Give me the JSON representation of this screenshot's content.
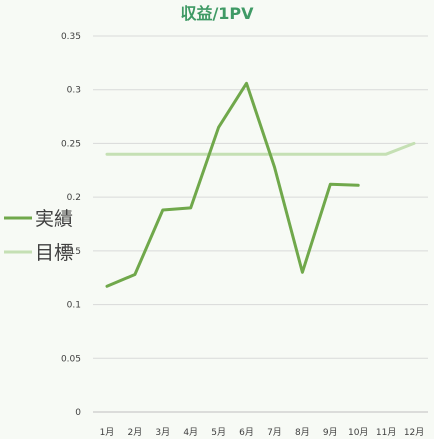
{
  "colors": {
    "background": "#f7faf5",
    "title": "#3f9a65",
    "actual": "#70a84b",
    "target": "#c5e0b4",
    "grid": "#d9d9d9",
    "text": "#404040"
  },
  "chart_data": {
    "type": "line",
    "title": "収益/1PV",
    "xlabel": "",
    "ylabel": "",
    "categories": [
      "1月",
      "2月",
      "3月",
      "4月",
      "5月",
      "6月",
      "7月",
      "8月",
      "9月",
      "10月",
      "11月",
      "12月"
    ],
    "ylim": [
      0,
      0.35
    ],
    "yticks": [
      "0",
      "0.05",
      "0.1",
      "0.15",
      "0.2",
      "0.25",
      "0.3",
      "0.35"
    ],
    "grid": true,
    "legend_position": "left",
    "series": [
      {
        "name": "実績",
        "color": "#70a84b",
        "values": [
          0.117,
          0.128,
          0.188,
          0.19,
          0.265,
          0.306,
          0.228,
          0.13,
          0.212,
          0.211,
          null,
          null
        ]
      },
      {
        "name": "目標",
        "color": "#c5e0b4",
        "values": [
          0.24,
          0.24,
          0.24,
          0.24,
          0.24,
          0.24,
          0.24,
          0.24,
          0.24,
          0.24,
          0.24,
          0.25
        ]
      }
    ]
  }
}
